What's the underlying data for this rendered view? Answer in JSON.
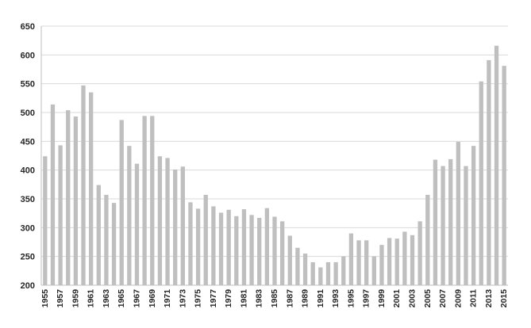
{
  "chart_data": {
    "type": "bar",
    "title": "",
    "xlabel": "",
    "ylabel": "",
    "ylim": [
      200,
      650
    ],
    "y_ticks": [
      200,
      250,
      300,
      350,
      400,
      450,
      500,
      550,
      600,
      650
    ],
    "grid": true,
    "legend": "none",
    "bar_color": "#bfbfbf",
    "categories": [
      "1955",
      "1956",
      "1957",
      "1958",
      "1959",
      "1960",
      "1961",
      "1962",
      "1963",
      "1964",
      "1965",
      "1966",
      "1967",
      "1968",
      "1969",
      "1970",
      "1971",
      "1972",
      "1973",
      "1974",
      "1975",
      "1976",
      "1977",
      "1978",
      "1979",
      "1980",
      "1981",
      "1982",
      "1983",
      "1984",
      "1985",
      "1986",
      "1987",
      "1988",
      "1989",
      "1990",
      "1991",
      "1992",
      "1993",
      "1994",
      "1995",
      "1996",
      "1997",
      "1998",
      "1999",
      "2000",
      "2001",
      "2002",
      "2003",
      "2004",
      "2005",
      "2006",
      "2007",
      "2008",
      "2009",
      "2010",
      "2011",
      "2012",
      "2013",
      "2014",
      "2015"
    ],
    "x_tick_labels": [
      "1955",
      "1957",
      "1959",
      "1961",
      "1963",
      "1965",
      "1967",
      "1969",
      "1971",
      "1973",
      "1975",
      "1977",
      "1979",
      "1981",
      "1983",
      "1985",
      "1987",
      "1989",
      "1991",
      "1993",
      "1995",
      "1997",
      "1999",
      "2001",
      "2003",
      "2005",
      "2007",
      "2009",
      "2011",
      "2013",
      "2015"
    ],
    "values": [
      424,
      514,
      443,
      504,
      493,
      547,
      535,
      374,
      357,
      343,
      487,
      442,
      411,
      494,
      494,
      424,
      421,
      401,
      406,
      344,
      333,
      357,
      337,
      326,
      331,
      320,
      332,
      322,
      317,
      334,
      319,
      311,
      286,
      265,
      255,
      240,
      231,
      240,
      240,
      250,
      290,
      278,
      278,
      250,
      270,
      282,
      281,
      293,
      287,
      311,
      357,
      418,
      407,
      419,
      449,
      407,
      442,
      554,
      591,
      616,
      581
    ]
  }
}
